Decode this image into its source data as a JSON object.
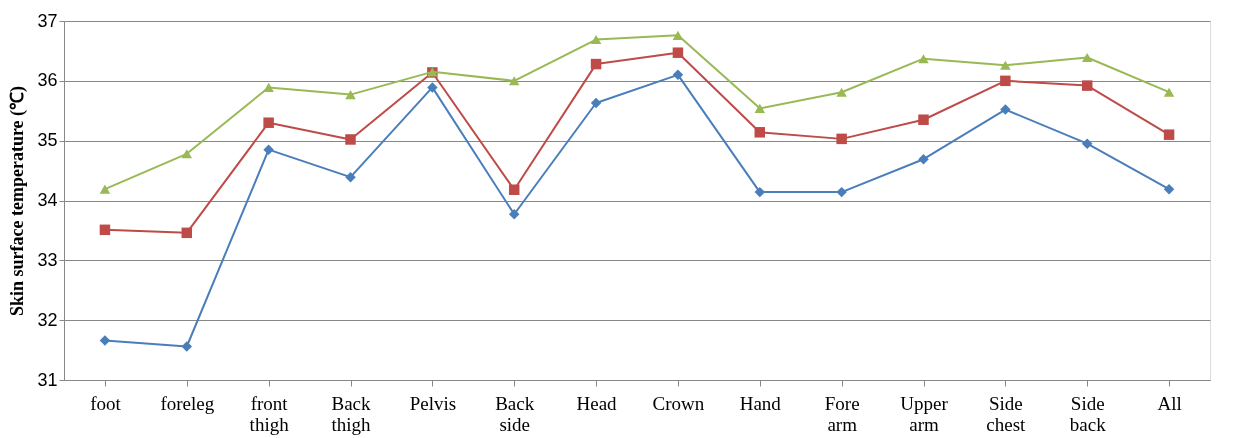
{
  "chart_data": {
    "type": "line",
    "ylabel": "Skin surface temperature (℃)",
    "categories": [
      "foot",
      "foreleg",
      "front thigh",
      "Back thigh",
      "Pelvis",
      "Back side",
      "Head",
      "Crown",
      "Hand",
      "Fore arm",
      "Upper arm",
      "Side chest",
      "Side back",
      "All"
    ],
    "series": [
      {
        "color": "#4a7ebb",
        "marker": "diamond",
        "values": [
          31.66,
          31.56,
          34.85,
          34.39,
          35.89,
          33.77,
          35.63,
          36.1,
          34.14,
          34.14,
          34.69,
          35.52,
          34.95,
          34.19
        ]
      },
      {
        "color": "#be4b48",
        "marker": "square",
        "values": [
          33.51,
          33.46,
          35.3,
          35.02,
          36.14,
          34.18,
          36.28,
          36.47,
          35.14,
          35.03,
          35.35,
          36.0,
          35.92,
          35.1
        ]
      },
      {
        "color": "#98b954",
        "marker": "triangle",
        "values": [
          34.19,
          34.78,
          35.89,
          35.77,
          36.15,
          36.0,
          36.69,
          36.76,
          35.54,
          35.81,
          36.37,
          36.26,
          36.39,
          35.81
        ]
      }
    ],
    "ylim": [
      31,
      37
    ],
    "yticks": [
      31,
      32,
      33,
      34,
      35,
      36,
      37
    ],
    "grid": "y",
    "line_style": "solid"
  }
}
